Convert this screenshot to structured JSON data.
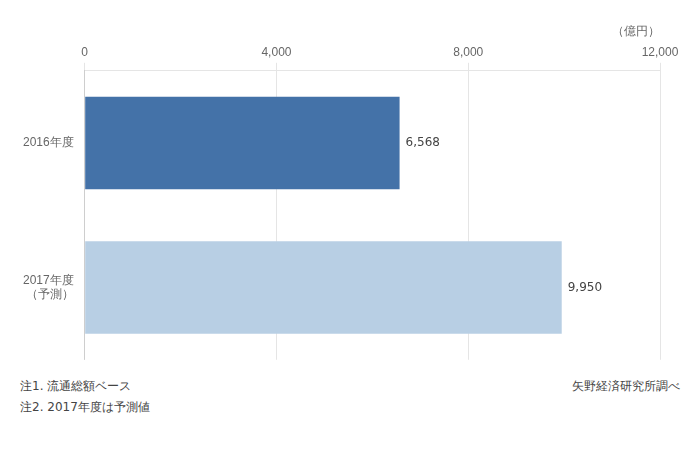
{
  "chart_data": {
    "type": "bar",
    "orientation": "horizontal",
    "categories": [
      "2016年度",
      "2017年度\n（予測）"
    ],
    "values": [
      6568,
      9950
    ],
    "value_labels": [
      "6,568",
      "9,950"
    ],
    "data_labels": true,
    "colors": [
      "#4472a8",
      "#b8cfe4"
    ],
    "xlabel": "（億円）",
    "xlim": [
      0,
      12000
    ],
    "xticks": [
      0,
      {
        "value": 4000,
        "label": "4,000"
      },
      {
        "value": 8000,
        "label": "8,000"
      },
      {
        "value": 12000,
        "label": "12,000"
      }
    ],
    "grid": true,
    "annotations": [
      "注1. 流通総額ベース",
      "注2. 2017年度は予測値",
      "矢野経済研究所調べ"
    ]
  }
}
